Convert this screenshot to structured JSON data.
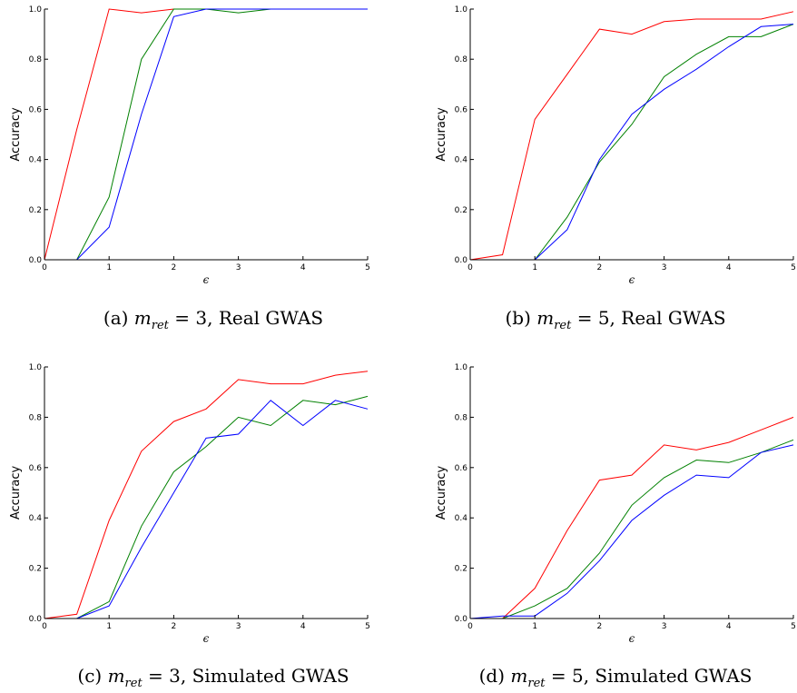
{
  "figure": {
    "captions": [
      {
        "prefix": "(a)",
        "var": "m",
        "sub": "ret",
        "rest": " = 3, Real GWAS"
      },
      {
        "prefix": "(b)",
        "var": "m",
        "sub": "ret",
        "rest": " = 5, Real GWAS"
      },
      {
        "prefix": "(c)",
        "var": "m",
        "sub": "ret",
        "rest": " = 3, Simulated GWAS"
      },
      {
        "prefix": "(d)",
        "var": "m",
        "sub": "ret",
        "rest": " = 5, Simulated GWAS"
      }
    ]
  },
  "chart_data": [
    {
      "type": "line",
      "ylabel": "Accuracy",
      "xlabel": "ϵ",
      "xlim": [
        0,
        5
      ],
      "ylim": [
        0,
        1
      ],
      "xticks": [
        "0",
        "1",
        "2",
        "3",
        "4",
        "5"
      ],
      "yticks": [
        "0.0",
        "0.2",
        "0.4",
        "0.6",
        "0.8",
        "1.0"
      ],
      "grid": false,
      "x": [
        0,
        0.5,
        1,
        1.5,
        2,
        2.5,
        3,
        3.5,
        4,
        4.5,
        5
      ],
      "series": [
        {
          "color": "#ff0000",
          "values": [
            0,
            0.52,
            1.0,
            0.985,
            1.0,
            1.0,
            1.0,
            1.0,
            1.0,
            1.0,
            1.0
          ]
        },
        {
          "color": "#008000",
          "values": [
            0,
            0,
            0.25,
            0.8,
            1.0,
            1.0,
            0.985,
            1.0,
            1.0,
            1.0,
            1.0
          ]
        },
        {
          "color": "#0000ff",
          "values": [
            0,
            0,
            0.13,
            0.58,
            0.97,
            1.0,
            1.0,
            1.0,
            1.0,
            1.0,
            1.0
          ]
        }
      ]
    },
    {
      "type": "line",
      "ylabel": "Accuracy",
      "xlabel": "ϵ",
      "xlim": [
        0,
        5
      ],
      "ylim": [
        0,
        1
      ],
      "xticks": [
        "0",
        "1",
        "2",
        "3",
        "4",
        "5"
      ],
      "yticks": [
        "0.0",
        "0.2",
        "0.4",
        "0.6",
        "0.8",
        "1.0"
      ],
      "grid": false,
      "x": [
        0,
        0.5,
        1,
        1.5,
        2,
        2.5,
        3,
        3.5,
        4,
        4.5,
        5
      ],
      "series": [
        {
          "color": "#ff0000",
          "values": [
            0,
            0.02,
            0.56,
            0.74,
            0.92,
            0.9,
            0.95,
            0.96,
            0.96,
            0.96,
            0.99
          ]
        },
        {
          "color": "#008000",
          "values": [
            0,
            0,
            0,
            0.17,
            0.39,
            0.54,
            0.73,
            0.82,
            0.89,
            0.89,
            0.94
          ]
        },
        {
          "color": "#0000ff",
          "values": [
            0,
            0,
            0,
            0.12,
            0.4,
            0.58,
            0.68,
            0.76,
            0.85,
            0.93,
            0.94
          ]
        }
      ]
    },
    {
      "type": "line",
      "ylabel": "Accuracy",
      "xlabel": "ϵ",
      "xlim": [
        0,
        5
      ],
      "ylim": [
        0,
        1
      ],
      "xticks": [
        "0",
        "1",
        "2",
        "3",
        "4",
        "5"
      ],
      "yticks": [
        "0.0",
        "0.2",
        "0.4",
        "0.6",
        "0.8",
        "1.0"
      ],
      "grid": false,
      "x": [
        0,
        0.5,
        1,
        1.5,
        2,
        2.5,
        3,
        3.5,
        4,
        4.5,
        5
      ],
      "series": [
        {
          "color": "#ff0000",
          "values": [
            0,
            0.017,
            0.39,
            0.665,
            0.783,
            0.833,
            0.95,
            0.933,
            0.933,
            0.967,
            0.983
          ]
        },
        {
          "color": "#008000",
          "values": [
            0,
            0,
            0.067,
            0.367,
            0.583,
            0.683,
            0.8,
            0.767,
            0.867,
            0.85,
            0.883
          ]
        },
        {
          "color": "#0000ff",
          "values": [
            0,
            0,
            0.05,
            0.283,
            0.5,
            0.717,
            0.733,
            0.867,
            0.767,
            0.867,
            0.833
          ]
        }
      ]
    },
    {
      "type": "line",
      "ylabel": "Accuracy",
      "xlabel": "ϵ",
      "xlim": [
        0,
        5
      ],
      "ylim": [
        0,
        1
      ],
      "xticks": [
        "0",
        "1",
        "2",
        "3",
        "4",
        "5"
      ],
      "yticks": [
        "0.0",
        "0.2",
        "0.4",
        "0.6",
        "0.8",
        "1.0"
      ],
      "grid": false,
      "x": [
        0,
        0.5,
        1,
        1.5,
        2,
        2.5,
        3,
        3.5,
        4,
        4.5,
        5
      ],
      "series": [
        {
          "color": "#ff0000",
          "values": [
            0,
            0,
            0.12,
            0.35,
            0.55,
            0.57,
            0.69,
            0.67,
            0.7,
            0.75,
            0.8
          ]
        },
        {
          "color": "#008000",
          "values": [
            0,
            0,
            0.05,
            0.12,
            0.26,
            0.45,
            0.56,
            0.63,
            0.62,
            0.66,
            0.71
          ]
        },
        {
          "color": "#0000ff",
          "values": [
            0,
            0.01,
            0.01,
            0.1,
            0.23,
            0.39,
            0.49,
            0.57,
            0.56,
            0.66,
            0.69
          ]
        }
      ]
    }
  ]
}
